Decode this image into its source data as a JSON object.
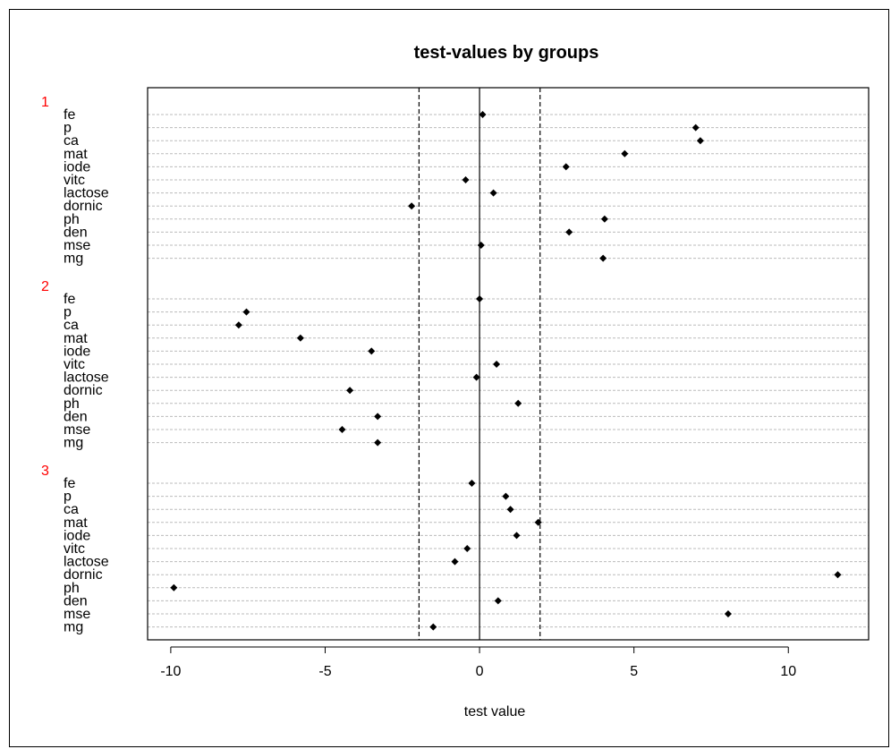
{
  "chart_data": {
    "type": "scatter",
    "title": "test-values by groups",
    "xlabel": "test value",
    "ylabel": "",
    "xlim": [
      -10.75,
      12.6
    ],
    "xticks": [
      -10,
      -5,
      0,
      5,
      10
    ],
    "reference_lines": [
      {
        "x": 0,
        "style": "solid"
      },
      {
        "x": -1.96,
        "style": "dashed"
      },
      {
        "x": 1.96,
        "style": "dashed"
      }
    ],
    "grid": "horizontal dotted per variable",
    "legend": "none",
    "colors": {
      "group_label": "#ff0000",
      "point": "#000000",
      "grid": "#bbbbbb"
    },
    "groups": [
      {
        "name": "1",
        "labels": [
          "fe",
          "p",
          "ca",
          "mat",
          "iode",
          "vitc",
          "lactose",
          "dornic",
          "ph",
          "den",
          "mse",
          "mg"
        ],
        "values": [
          0.1,
          7.0,
          7.15,
          4.7,
          2.8,
          -0.45,
          0.45,
          -2.2,
          4.05,
          2.9,
          0.05,
          4.0
        ]
      },
      {
        "name": "2",
        "labels": [
          "fe",
          "p",
          "ca",
          "mat",
          "iode",
          "vitc",
          "lactose",
          "dornic",
          "ph",
          "den",
          "mse",
          "mg"
        ],
        "values": [
          0.0,
          -7.55,
          -7.8,
          -5.8,
          -3.5,
          0.55,
          -0.1,
          -4.2,
          1.25,
          -3.3,
          -4.45,
          -3.3
        ]
      },
      {
        "name": "3",
        "labels": [
          "fe",
          "p",
          "ca",
          "mat",
          "iode",
          "vitc",
          "lactose",
          "dornic",
          "ph",
          "den",
          "mse",
          "mg"
        ],
        "values": [
          -0.25,
          0.85,
          1.0,
          1.9,
          1.2,
          -0.4,
          -0.8,
          11.6,
          -9.9,
          0.6,
          8.05,
          -1.5
        ]
      }
    ]
  }
}
